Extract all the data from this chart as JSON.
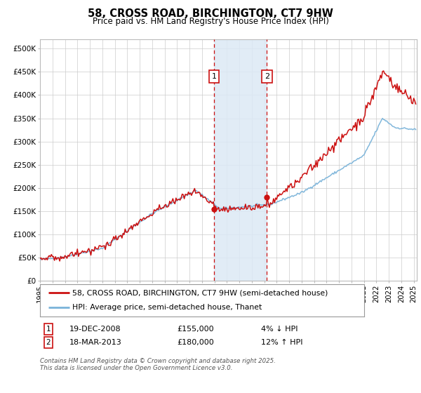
{
  "title": "58, CROSS ROAD, BIRCHINGTON, CT7 9HW",
  "subtitle": "Price paid vs. HM Land Registry's House Price Index (HPI)",
  "legend_line1": "58, CROSS ROAD, BIRCHINGTON, CT7 9HW (semi-detached house)",
  "legend_line2": "HPI: Average price, semi-detached house, Thanet",
  "annotation_text": "Contains HM Land Registry data © Crown copyright and database right 2025.\nThis data is licensed under the Open Government Licence v3.0.",
  "purchase1_date": "19-DEC-2008",
  "purchase1_price": 155000,
  "purchase1_hpi": "4% ↓ HPI",
  "purchase2_date": "18-MAR-2013",
  "purchase2_price": 180000,
  "purchase2_hpi": "12% ↑ HPI",
  "ylabel_ticks": [
    "£0",
    "£50K",
    "£100K",
    "£150K",
    "£200K",
    "£250K",
    "£300K",
    "£350K",
    "£400K",
    "£450K",
    "£500K"
  ],
  "ylim": [
    0,
    520000
  ],
  "ytick_vals": [
    0,
    50000,
    100000,
    150000,
    200000,
    250000,
    300000,
    350000,
    400000,
    450000,
    500000
  ],
  "hpi_color": "#7ab3d9",
  "price_color": "#cc1111",
  "background_color": "#ffffff",
  "plot_bg": "#ffffff",
  "grid_color": "#cccccc",
  "shade_color": "#dce9f5",
  "vline_color": "#cc1111",
  "marker_color": "#cc1111",
  "box_color": "#cc1111"
}
